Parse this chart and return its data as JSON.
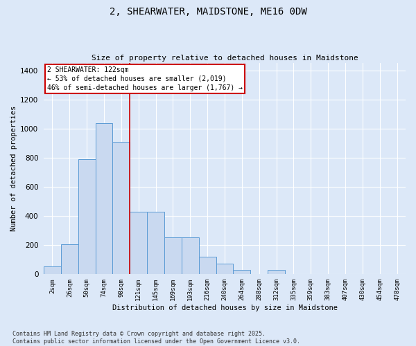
{
  "title": "2, SHEARWATER, MAIDSTONE, ME16 0DW",
  "subtitle": "Size of property relative to detached houses in Maidstone",
  "xlabel": "Distribution of detached houses by size in Maidstone",
  "ylabel": "Number of detached properties",
  "footnote": "Contains HM Land Registry data © Crown copyright and database right 2025.\nContains public sector information licensed under the Open Government Licence v3.0.",
  "bar_color": "#c9d9f0",
  "bar_edge_color": "#5b9bd5",
  "categories": [
    "2sqm",
    "26sqm",
    "50sqm",
    "74sqm",
    "98sqm",
    "121sqm",
    "145sqm",
    "169sqm",
    "193sqm",
    "216sqm",
    "240sqm",
    "264sqm",
    "288sqm",
    "312sqm",
    "335sqm",
    "359sqm",
    "383sqm",
    "407sqm",
    "430sqm",
    "454sqm",
    "478sqm"
  ],
  "values": [
    50,
    205,
    790,
    1035,
    910,
    430,
    430,
    250,
    250,
    120,
    70,
    30,
    0,
    30,
    0,
    0,
    0,
    0,
    0,
    0,
    0
  ],
  "property_line_x": 4.5,
  "property_line_color": "#cc0000",
  "annotation_text": "2 SHEARWATER: 122sqm\n← 53% of detached houses are smaller (2,019)\n46% of semi-detached houses are larger (1,767) →",
  "annotation_box_color": "#cc0000",
  "ylim": [
    0,
    1450
  ],
  "yticks": [
    0,
    200,
    400,
    600,
    800,
    1000,
    1200,
    1400
  ],
  "background_color": "#dce8f8",
  "grid_color": "#ffffff"
}
